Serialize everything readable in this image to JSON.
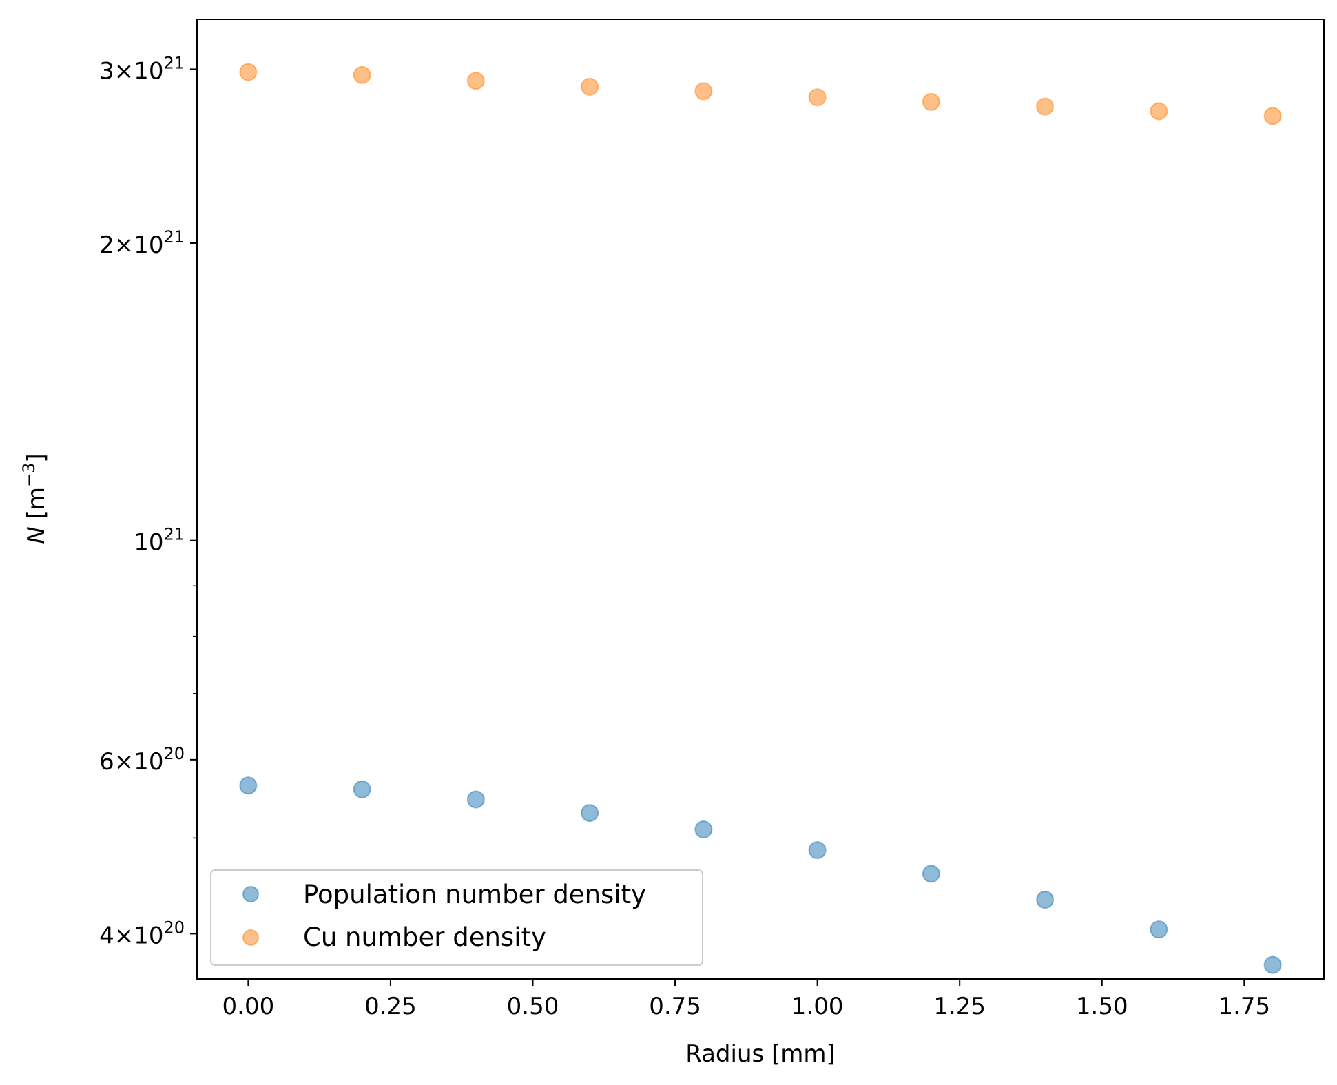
{
  "chart_data": {
    "type": "scatter",
    "title": "",
    "xlabel": "Radius [mm]",
    "ylabel": {
      "symbol": "N",
      "unit_prefix": " [m",
      "unit_exponent": "−3",
      "unit_suffix": "]"
    },
    "xlim": [
      -0.09,
      1.89
    ],
    "ylim": [
      3.6e+20,
      3.37e+21
    ],
    "yscale": "log",
    "grid": false,
    "legend_position": "lower-left",
    "x_ticks": [
      {
        "value": 0.0,
        "label": "0.00"
      },
      {
        "value": 0.25,
        "label": "0.25"
      },
      {
        "value": 0.5,
        "label": "0.50"
      },
      {
        "value": 0.75,
        "label": "0.75"
      },
      {
        "value": 1.0,
        "label": "1.00"
      },
      {
        "value": 1.25,
        "label": "1.25"
      },
      {
        "value": 1.5,
        "label": "1.50"
      },
      {
        "value": 1.75,
        "label": "1.75"
      }
    ],
    "y_major_ticks": [
      {
        "value": 4e+20,
        "mantissa": "4",
        "times": "×",
        "base": "10",
        "exponent": "20"
      },
      {
        "value": 6e+20,
        "mantissa": "6",
        "times": "×",
        "base": "10",
        "exponent": "20"
      },
      {
        "value": 1e+21,
        "mantissa": "",
        "times": "",
        "base": "10",
        "exponent": "21"
      },
      {
        "value": 2e+21,
        "mantissa": "2",
        "times": "×",
        "base": "10",
        "exponent": "21"
      },
      {
        "value": 3e+21,
        "mantissa": "3",
        "times": "×",
        "base": "10",
        "exponent": "21"
      }
    ],
    "y_minor_ticks": [
      5e+20,
      7e+20,
      8e+20,
      9e+20
    ],
    "x": [
      0.0,
      0.2,
      0.4,
      0.6,
      0.8,
      1.0,
      1.2,
      1.4,
      1.6,
      1.8
    ],
    "series": [
      {
        "name": "Population number density",
        "color": "#1f77b4",
        "values": [
          5.65e+20,
          5.6e+20,
          5.47e+20,
          5.3e+20,
          5.1e+20,
          4.86e+20,
          4.6e+20,
          4.33e+20,
          4.04e+20,
          3.72e+20
        ]
      },
      {
        "name": "Cu number density",
        "color": "#ff7f0e",
        "values": [
          2.98e+21,
          2.96e+21,
          2.92e+21,
          2.88e+21,
          2.85e+21,
          2.81e+21,
          2.78e+21,
          2.75e+21,
          2.72e+21,
          2.69e+21
        ]
      }
    ]
  }
}
